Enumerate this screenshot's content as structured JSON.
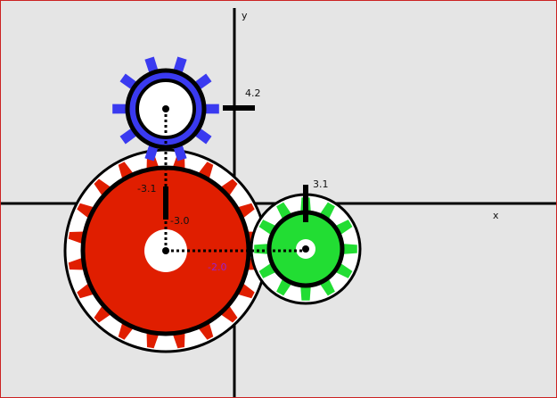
{
  "axes": {
    "x_label": "x",
    "y_label": "y",
    "axis_color": "#000000"
  },
  "gears": [
    {
      "id": "blue",
      "color": "#3a3af0",
      "teeth": 10,
      "rotation_deg": 0
    },
    {
      "id": "red",
      "color": "#e01e00",
      "teeth": 20,
      "rotation_deg": 9
    },
    {
      "id": "green",
      "color": "#22dd33",
      "teeth": 12,
      "rotation_deg": 0
    }
  ],
  "annotations": {
    "blue_y_marker": "4.2",
    "blue_x_readout": "-3.1",
    "red_y_readout": "-3.0",
    "red_green_distance": "-2.0",
    "green_y_marker": "3.1"
  },
  "colors": {
    "background": "#e5e5e5",
    "distance_label": "#9a22cc",
    "outline": "#000000"
  }
}
